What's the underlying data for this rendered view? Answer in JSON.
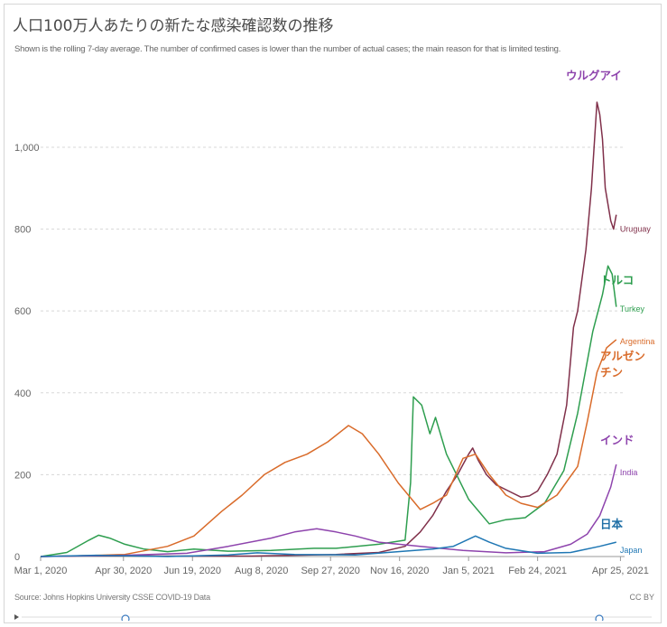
{
  "header": {
    "title": "人口100万人あたりの新たな感染確認数の推移",
    "subtitle": "Shown is the rolling 7-day average. The number of confirmed cases is lower than the number of actual cases; the main reason for that is limited testing."
  },
  "footer": {
    "source": "Source: Johns Hopkins University CSSE COVID-19 Data",
    "license": "CC BY"
  },
  "chart_data": {
    "type": "line",
    "title": "人口100万人あたりの新たな感染確認数の推移",
    "subtitle": "Shown is the rolling 7-day average. The number of confirmed cases is lower than the number of actual cases; the main reason for that is limited testing.",
    "xlabel": "",
    "ylabel": "",
    "x_range": [
      "2020-03-01",
      "2021-04-28"
    ],
    "ylim": [
      0,
      1150
    ],
    "y_ticks": [
      0,
      200,
      400,
      600,
      800,
      1000
    ],
    "y_tick_labels": [
      "0",
      "200",
      "400",
      "600",
      "800",
      "1,000"
    ],
    "x_ticks": [
      "2020-03-01",
      "2020-04-30",
      "2020-06-19",
      "2020-08-08",
      "2020-09-27",
      "2020-11-16",
      "2021-01-05",
      "2021-02-24",
      "2021-04-25"
    ],
    "x_tick_labels": [
      "Mar 1, 2020",
      "Apr 30, 2020",
      "Jun 19, 2020",
      "Aug 8, 2020",
      "Sep 27, 2020",
      "Nov 16, 2020",
      "Jan 5, 2021",
      "Feb 24, 2021",
      "Apr 25, 2021"
    ],
    "grid": "horizontal dotted",
    "series": [
      {
        "name": "Uruguay",
        "annotation": "ウルグアイ",
        "color": "#80304a",
        "annotation_color": "#8e44ad",
        "points": [
          [
            "2020-03-01",
            0
          ],
          [
            "2020-04-01",
            2
          ],
          [
            "2020-06-01",
            1
          ],
          [
            "2020-08-01",
            1
          ],
          [
            "2020-10-01",
            5
          ],
          [
            "2020-11-01",
            10
          ],
          [
            "2020-11-20",
            25
          ],
          [
            "2020-12-01",
            60
          ],
          [
            "2020-12-10",
            100
          ],
          [
            "2020-12-20",
            160
          ],
          [
            "2020-12-28",
            200
          ],
          [
            "2021-01-05",
            250
          ],
          [
            "2021-01-08",
            265
          ],
          [
            "2021-01-12",
            235
          ],
          [
            "2021-01-18",
            200
          ],
          [
            "2021-01-25",
            175
          ],
          [
            "2021-02-03",
            160
          ],
          [
            "2021-02-12",
            145
          ],
          [
            "2021-02-18",
            148
          ],
          [
            "2021-02-24",
            160
          ],
          [
            "2021-03-03",
            200
          ],
          [
            "2021-03-10",
            250
          ],
          [
            "2021-03-17",
            370
          ],
          [
            "2021-03-22",
            560
          ],
          [
            "2021-03-25",
            600
          ],
          [
            "2021-03-31",
            750
          ],
          [
            "2021-04-04",
            900
          ],
          [
            "2021-04-08",
            1110
          ],
          [
            "2021-04-10",
            1080
          ],
          [
            "2021-04-12",
            1020
          ],
          [
            "2021-04-14",
            900
          ],
          [
            "2021-04-18",
            820
          ],
          [
            "2021-04-20",
            800
          ],
          [
            "2021-04-22",
            835
          ]
        ]
      },
      {
        "name": "Turkey",
        "annotation": "トルコ",
        "color": "#2e9e4f",
        "annotation_color": "#2e9e4f",
        "points": [
          [
            "2020-03-01",
            0
          ],
          [
            "2020-03-20",
            10
          ],
          [
            "2020-04-05",
            40
          ],
          [
            "2020-04-12",
            52
          ],
          [
            "2020-04-20",
            45
          ],
          [
            "2020-05-01",
            30
          ],
          [
            "2020-05-15",
            18
          ],
          [
            "2020-06-01",
            12
          ],
          [
            "2020-06-20",
            18
          ],
          [
            "2020-07-15",
            13
          ],
          [
            "2020-08-15",
            15
          ],
          [
            "2020-09-15",
            20
          ],
          [
            "2020-10-01",
            20
          ],
          [
            "2020-11-01",
            30
          ],
          [
            "2020-11-20",
            40
          ],
          [
            "2020-11-24",
            180
          ],
          [
            "2020-11-26",
            390
          ],
          [
            "2020-12-02",
            370
          ],
          [
            "2020-12-08",
            300
          ],
          [
            "2020-12-12",
            340
          ],
          [
            "2020-12-20",
            250
          ],
          [
            "2021-01-05",
            140
          ],
          [
            "2021-01-20",
            80
          ],
          [
            "2021-02-01",
            90
          ],
          [
            "2021-02-15",
            95
          ],
          [
            "2021-03-01",
            130
          ],
          [
            "2021-03-15",
            210
          ],
          [
            "2021-03-25",
            350
          ],
          [
            "2021-04-05",
            550
          ],
          [
            "2021-04-12",
            640
          ],
          [
            "2021-04-16",
            710
          ],
          [
            "2021-04-19",
            690
          ],
          [
            "2021-04-22",
            610
          ]
        ]
      },
      {
        "name": "Argentina",
        "annotation": "アルゼンチン",
        "color": "#d96b2a",
        "annotation_color": "#d96b2a",
        "points": [
          [
            "2020-03-01",
            0
          ],
          [
            "2020-04-01",
            2
          ],
          [
            "2020-05-01",
            5
          ],
          [
            "2020-06-01",
            25
          ],
          [
            "2020-06-20",
            50
          ],
          [
            "2020-07-10",
            110
          ],
          [
            "2020-07-25",
            150
          ],
          [
            "2020-08-10",
            200
          ],
          [
            "2020-08-25",
            230
          ],
          [
            "2020-09-10",
            250
          ],
          [
            "2020-09-25",
            280
          ],
          [
            "2020-10-10",
            320
          ],
          [
            "2020-10-20",
            300
          ],
          [
            "2020-11-01",
            250
          ],
          [
            "2020-11-15",
            180
          ],
          [
            "2020-12-01",
            115
          ],
          [
            "2020-12-10",
            130
          ],
          [
            "2020-12-20",
            150
          ],
          [
            "2021-01-01",
            240
          ],
          [
            "2021-01-10",
            250
          ],
          [
            "2021-01-20",
            200
          ],
          [
            "2021-02-01",
            150
          ],
          [
            "2021-02-12",
            130
          ],
          [
            "2021-02-24",
            120
          ],
          [
            "2021-03-10",
            150
          ],
          [
            "2021-03-25",
            220
          ],
          [
            "2021-04-01",
            330
          ],
          [
            "2021-04-08",
            450
          ],
          [
            "2021-04-15",
            510
          ],
          [
            "2021-04-22",
            530
          ]
        ]
      },
      {
        "name": "India",
        "annotation": "インド",
        "color": "#8e44ad",
        "annotation_color": "#8e44ad",
        "points": [
          [
            "2020-03-01",
            0
          ],
          [
            "2020-05-01",
            3
          ],
          [
            "2020-06-15",
            8
          ],
          [
            "2020-07-15",
            25
          ],
          [
            "2020-08-15",
            45
          ],
          [
            "2020-09-01",
            60
          ],
          [
            "2020-09-17",
            68
          ],
          [
            "2020-10-01",
            60
          ],
          [
            "2020-10-15",
            50
          ],
          [
            "2020-11-01",
            35
          ],
          [
            "2020-12-01",
            25
          ],
          [
            "2021-01-01",
            15
          ],
          [
            "2021-02-01",
            9
          ],
          [
            "2021-03-01",
            12
          ],
          [
            "2021-03-20",
            30
          ],
          [
            "2021-04-01",
            55
          ],
          [
            "2021-04-10",
            100
          ],
          [
            "2021-04-18",
            170
          ],
          [
            "2021-04-22",
            225
          ]
        ]
      },
      {
        "name": "Japan",
        "annotation": "日本",
        "color": "#1f77b4",
        "annotation_color": "#1f6fa6",
        "points": [
          [
            "2020-03-01",
            0
          ],
          [
            "2020-04-10",
            3
          ],
          [
            "2020-05-01",
            2
          ],
          [
            "2020-06-01",
            0
          ],
          [
            "2020-07-15",
            4
          ],
          [
            "2020-08-05",
            9
          ],
          [
            "2020-09-01",
            5
          ],
          [
            "2020-10-15",
            4
          ],
          [
            "2020-11-15",
            12
          ],
          [
            "2020-12-10",
            18
          ],
          [
            "2020-12-25",
            25
          ],
          [
            "2021-01-10",
            50
          ],
          [
            "2021-01-20",
            35
          ],
          [
            "2021-02-01",
            20
          ],
          [
            "2021-02-24",
            8
          ],
          [
            "2021-03-20",
            10
          ],
          [
            "2021-04-10",
            25
          ],
          [
            "2021-04-22",
            35
          ]
        ]
      }
    ]
  }
}
